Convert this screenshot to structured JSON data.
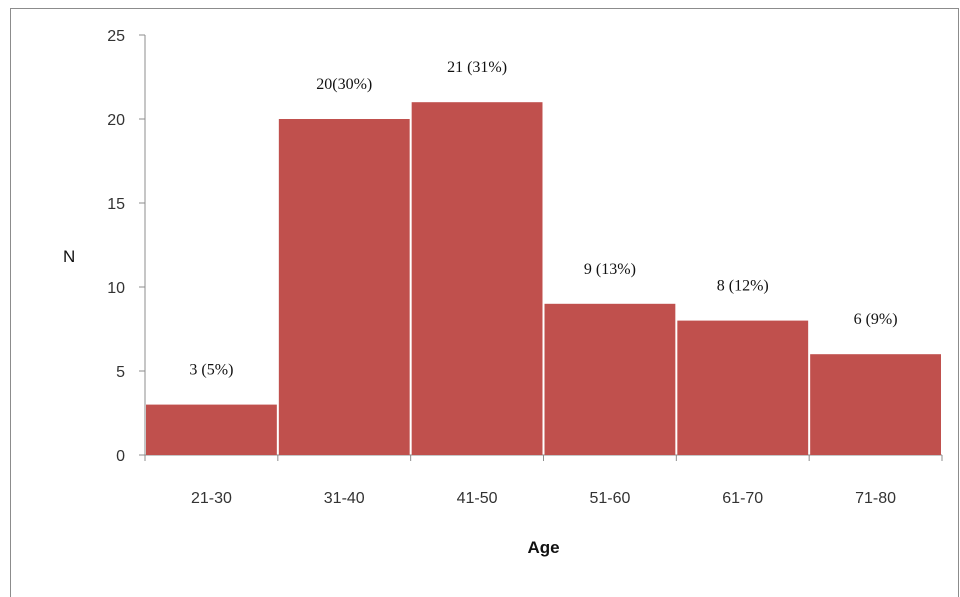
{
  "chart_data": {
    "type": "bar",
    "categories": [
      "21-30",
      "31-40",
      "41-50",
      "51-60",
      "61-70",
      "71-80"
    ],
    "values": [
      3,
      20,
      21,
      9,
      8,
      6
    ],
    "data_labels": [
      "3 (5%)",
      "20(30%)",
      "21 (31%)",
      "9 (13%)",
      "8 (12%)",
      "6 (9%)"
    ],
    "xlabel": "Age",
    "ylabel": "N",
    "ylim": [
      0,
      25
    ],
    "yticks": [
      "0",
      "5",
      "10",
      "15",
      "20",
      "25"
    ],
    "bar_color": "#c0504d",
    "grid": false,
    "legend": "none"
  }
}
